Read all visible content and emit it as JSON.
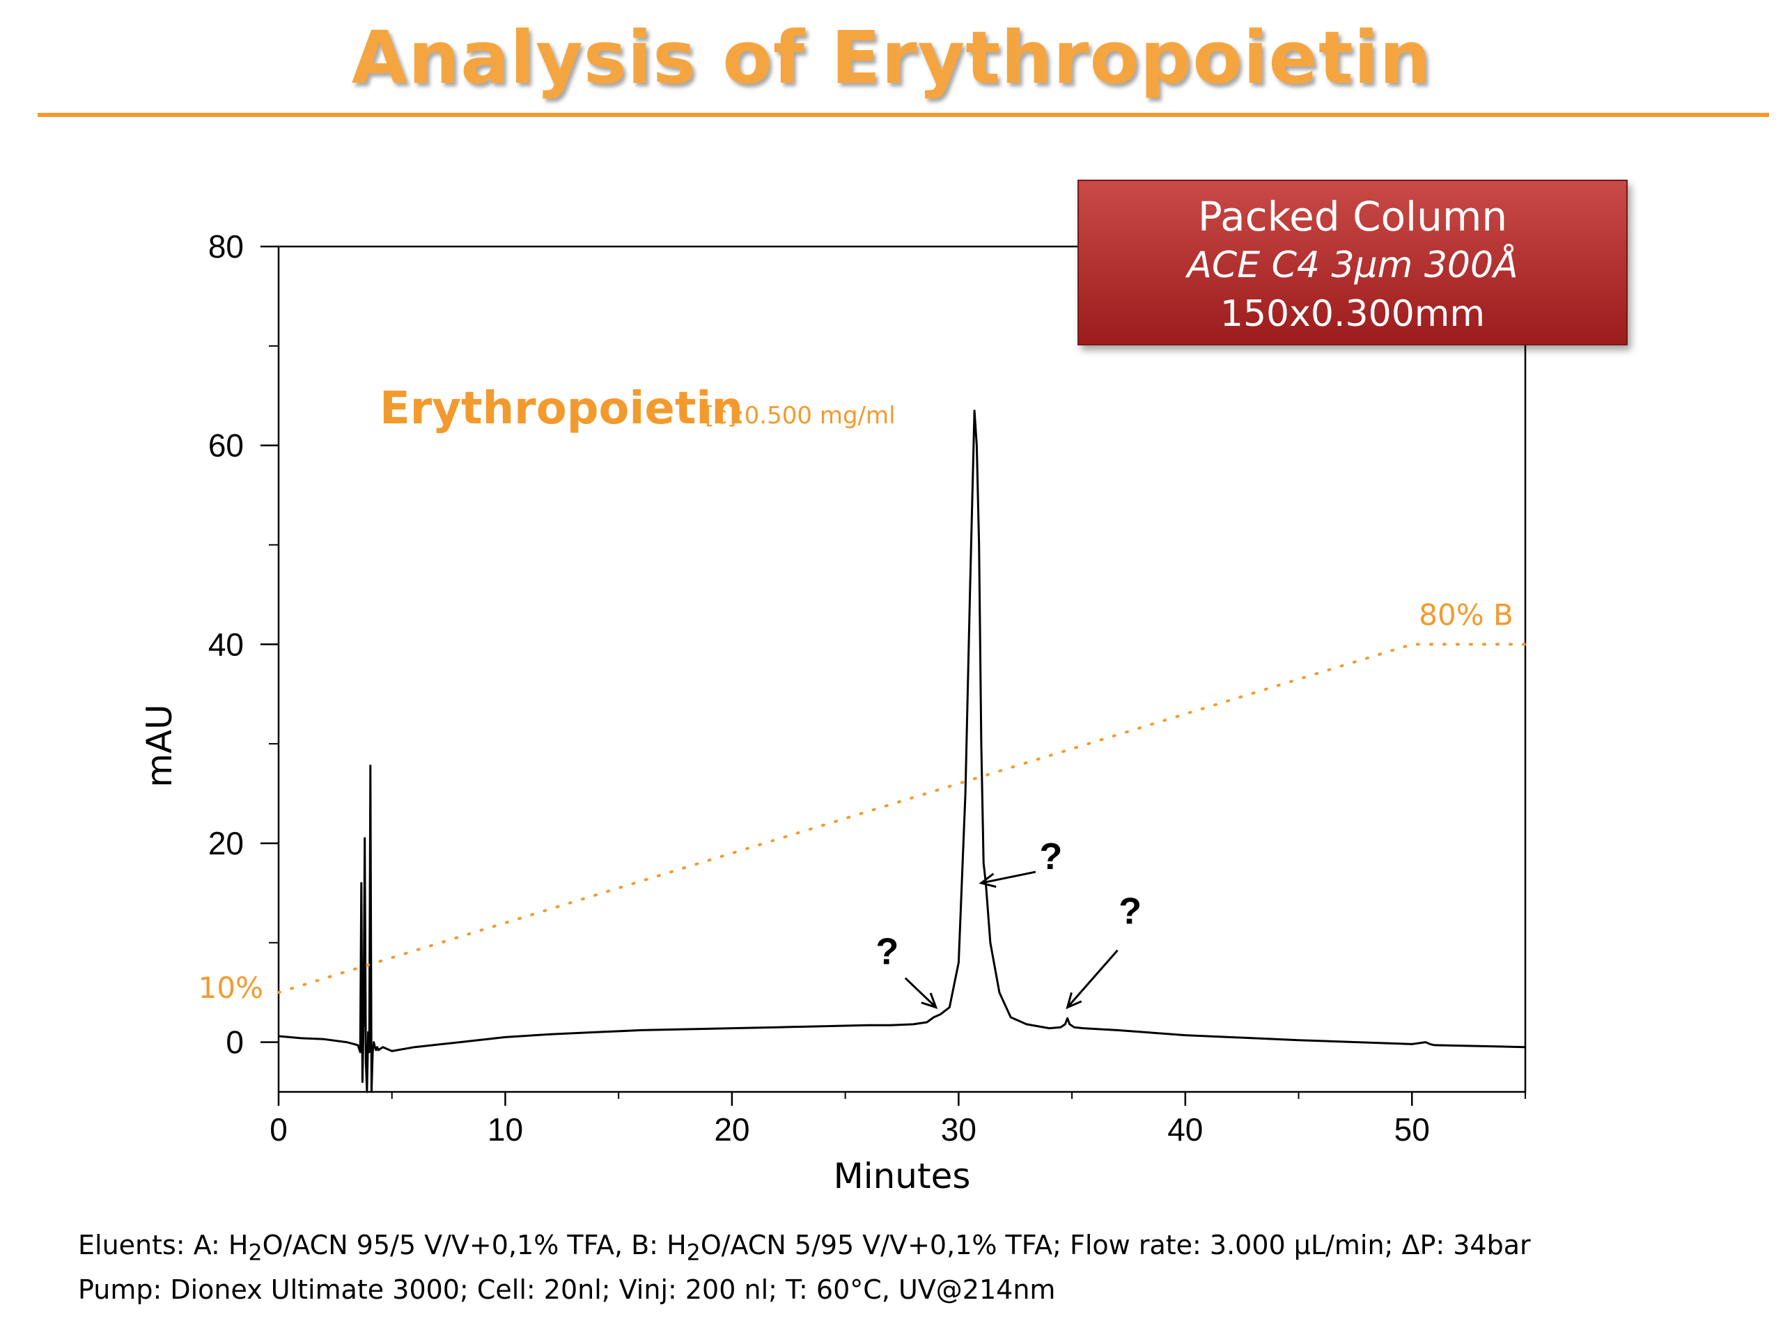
{
  "slide": {
    "title": "Analysis of Erythropoietin"
  },
  "column_box": {
    "title": "Packed Column",
    "line2": "ACE C4 3µm 300Å",
    "line3": "150x0.300mm"
  },
  "footer": {
    "line1_parts": [
      "Eluents: A: H",
      "2",
      "O/ACN 95/5 V/V+0,1% TFA,  B: H",
      "2",
      "O/ACN 5/95 V/V+0,1% TFA; Flow rate: 3.000 µL/min; ΔP: 34bar"
    ],
    "line2": "Pump: Dionex Ultimate 3000; Cell: 20nl; Vinj: 200 nl; T: 60°C, UV@214nm"
  },
  "colors": {
    "accent_orange": "#f39a2e",
    "trace": "#000000",
    "box_red": "#b22f2e"
  },
  "chart_data": {
    "type": "line",
    "title": "",
    "xlabel": "Minutes",
    "ylabel": "mAU",
    "xlim": [
      0,
      55
    ],
    "ylim": [
      -5,
      80
    ],
    "x_ticks": [
      0,
      10,
      20,
      30,
      40,
      50
    ],
    "x_tick_labels": [
      "0",
      "10",
      "20",
      "30",
      "40",
      "50"
    ],
    "y_ticks": [
      0,
      20,
      40,
      60,
      80
    ],
    "y_tick_labels": [
      "0",
      "20",
      "40",
      "60",
      "80"
    ],
    "grid": false,
    "sample_label": "Erythropoietin",
    "sample_concentration": "[c]:0.500 mg/ml",
    "series": [
      {
        "name": "",
        "style": "solid",
        "x": [
          0,
          1,
          2,
          3,
          3.5,
          3.6,
          3.65,
          3.7,
          3.75,
          3.8,
          3.85,
          3.9,
          3.95,
          4.0,
          4.05,
          4.1,
          4.15,
          4.2,
          4.25,
          4.3,
          4.35,
          4.4,
          4.6,
          5.0,
          6,
          8,
          10,
          12,
          14,
          16,
          18,
          20,
          22,
          24,
          26,
          27,
          28,
          28.6,
          28.9,
          29.2,
          29.6,
          30.0,
          30.3,
          30.5,
          30.7,
          30.8,
          30.9,
          31.0,
          31.1,
          31.2,
          31.4,
          31.8,
          32.3,
          33,
          34,
          34.5,
          34.7,
          34.8,
          34.9,
          35.1,
          35.5,
          37,
          40,
          45,
          50,
          50.6,
          50.8,
          51,
          53,
          55
        ],
        "y": [
          0.6,
          0.4,
          0.3,
          0,
          -0.3,
          -1,
          16,
          -4,
          2,
          20.5,
          -2,
          -5,
          1,
          -1,
          27.8,
          -5,
          -1,
          0,
          -0.5,
          -0.8,
          -0.5,
          -0.8,
          -0.5,
          -0.9,
          -0.5,
          0,
          0.5,
          0.8,
          1.0,
          1.2,
          1.3,
          1.4,
          1.5,
          1.6,
          1.7,
          1.7,
          1.8,
          2.0,
          2.5,
          2.8,
          3.5,
          8,
          25,
          45,
          63.5,
          60,
          50,
          30,
          18,
          16,
          10,
          5,
          2.5,
          1.8,
          1.4,
          1.5,
          1.8,
          2.4,
          1.8,
          1.5,
          1.4,
          1.2,
          0.7,
          0.2,
          -0.2,
          0.0,
          -0.2,
          -0.3,
          -0.4,
          -0.5
        ]
      },
      {
        "name": "",
        "style": "dotted",
        "x": [
          0,
          50,
          55
        ],
        "y": [
          5,
          40,
          40
        ]
      }
    ],
    "annotations": [
      {
        "text": "10%",
        "x": 0,
        "y": 5,
        "position": "left"
      },
      {
        "text": "80% B",
        "x": 50,
        "y": 40,
        "position": "above"
      },
      {
        "text": "?",
        "x": 29.0,
        "y": 3.5,
        "position": "upper-left",
        "arrow": true
      },
      {
        "text": "?",
        "x": 31.0,
        "y": 16,
        "position": "right",
        "arrow": true
      },
      {
        "text": "?",
        "x": 34.8,
        "y": 3.5,
        "position": "upper-right",
        "arrow": true
      }
    ]
  }
}
